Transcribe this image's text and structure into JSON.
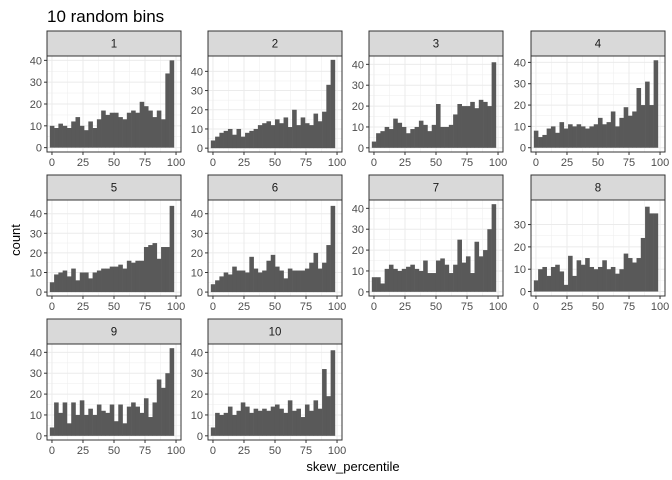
{
  "chart_data": {
    "type": "bar",
    "title": "10 random bins",
    "xlabel": "skew_percentile",
    "ylabel": "count",
    "xlim": [
      -4,
      104
    ],
    "x_ticks": [
      0,
      25,
      50,
      75,
      100
    ],
    "bins_x": [
      0,
      3.45,
      6.9,
      10.34,
      13.79,
      17.24,
      20.69,
      24.14,
      27.59,
      31.03,
      34.48,
      37.93,
      41.38,
      44.83,
      48.28,
      51.72,
      55.17,
      58.62,
      62.07,
      65.52,
      68.97,
      72.41,
      75.86,
      79.31,
      82.76,
      86.21,
      89.66,
      93.1,
      96.55,
      100
    ],
    "grid": true,
    "legend": "none",
    "bar_color": "#595959",
    "panels": [
      {
        "label": "1",
        "ylim": [
          -2,
          42
        ],
        "y_ticks": [
          0,
          10,
          20,
          30,
          40
        ],
        "values": [
          10,
          9,
          11,
          10,
          9,
          12,
          14,
          10,
          8,
          12,
          9,
          13,
          17,
          15,
          16,
          16,
          14,
          13,
          16,
          17,
          16,
          21,
          19,
          17,
          14,
          17,
          13,
          34,
          40
        ]
      },
      {
        "label": "2",
        "ylim": [
          -2,
          48
        ],
        "y_ticks": [
          0,
          10,
          20,
          30,
          40
        ],
        "values": [
          4,
          6,
          8,
          9,
          10,
          7,
          10,
          6,
          8,
          9,
          10,
          12,
          13,
          14,
          12,
          15,
          13,
          16,
          11,
          20,
          12,
          16,
          13,
          12,
          18,
          14,
          19,
          33,
          46
        ]
      },
      {
        "label": "3",
        "ylim": [
          -2,
          44
        ],
        "y_ticks": [
          0,
          10,
          20,
          30,
          40
        ],
        "values": [
          3,
          7,
          8,
          10,
          9,
          14,
          12,
          10,
          7,
          9,
          10,
          13,
          11,
          8,
          11,
          21,
          10,
          10,
          11,
          16,
          21,
          20,
          20,
          22,
          19,
          23,
          22,
          20,
          41
        ]
      },
      {
        "label": "4",
        "ylim": [
          -2,
          43
        ],
        "y_ticks": [
          0,
          10,
          20,
          30,
          40
        ],
        "values": [
          8,
          5,
          6,
          9,
          10,
          7,
          12,
          9,
          11,
          10,
          11,
          10,
          9,
          10,
          11,
          14,
          11,
          12,
          17,
          10,
          14,
          19,
          15,
          17,
          28,
          20,
          31,
          20,
          41
        ]
      },
      {
        "label": "5",
        "ylim": [
          -2,
          47
        ],
        "y_ticks": [
          0,
          10,
          20,
          30,
          40
        ],
        "values": [
          5,
          9,
          10,
          11,
          8,
          12,
          6,
          10,
          10,
          7,
          10,
          11,
          12,
          12,
          13,
          13,
          14,
          12,
          16,
          15,
          16,
          16,
          23,
          24,
          25,
          17,
          23,
          23,
          44
        ]
      },
      {
        "label": "6",
        "ylim": [
          -2,
          47
        ],
        "y_ticks": [
          0,
          10,
          20,
          30,
          40
        ],
        "values": [
          4,
          6,
          8,
          10,
          9,
          13,
          11,
          11,
          10,
          18,
          12,
          10,
          11,
          16,
          19,
          13,
          11,
          7,
          12,
          11,
          11,
          11,
          12,
          15,
          20,
          12,
          15,
          24,
          44
        ]
      },
      {
        "label": "7",
        "ylim": [
          -2,
          44
        ],
        "y_ticks": [
          0,
          10,
          20,
          30,
          40
        ],
        "values": [
          7,
          7,
          4,
          11,
          13,
          11,
          10,
          11,
          12,
          13,
          11,
          10,
          15,
          9,
          9,
          15,
          16,
          13,
          9,
          13,
          25,
          14,
          17,
          9,
          24,
          17,
          20,
          30,
          42
        ]
      },
      {
        "label": "8",
        "ylim": [
          -2,
          41
        ],
        "y_ticks": [
          0,
          10,
          20,
          30
        ],
        "values": [
          5,
          10,
          11,
          7,
          11,
          12,
          9,
          3,
          16,
          7,
          14,
          12,
          15,
          11,
          10,
          11,
          14,
          10,
          11,
          8,
          10,
          17,
          15,
          13,
          15,
          24,
          38,
          35,
          35
        ]
      },
      {
        "label": "9",
        "ylim": [
          -2,
          44
        ],
        "y_ticks": [
          0,
          10,
          20,
          30,
          40
        ],
        "values": [
          4,
          16,
          11,
          16,
          6,
          16,
          10,
          17,
          10,
          13,
          10,
          15,
          12,
          11,
          15,
          7,
          15,
          6,
          14,
          16,
          14,
          11,
          18,
          9,
          16,
          27,
          23,
          30,
          42
        ]
      },
      {
        "label": "10",
        "ylim": [
          -2,
          44
        ],
        "y_ticks": [
          0,
          10,
          20,
          30,
          40
        ],
        "values": [
          4,
          11,
          10,
          11,
          14,
          10,
          12,
          16,
          14,
          11,
          13,
          12,
          13,
          12,
          14,
          15,
          13,
          11,
          17,
          12,
          13,
          9,
          15,
          12,
          17,
          13,
          32,
          19,
          41
        ]
      }
    ]
  }
}
